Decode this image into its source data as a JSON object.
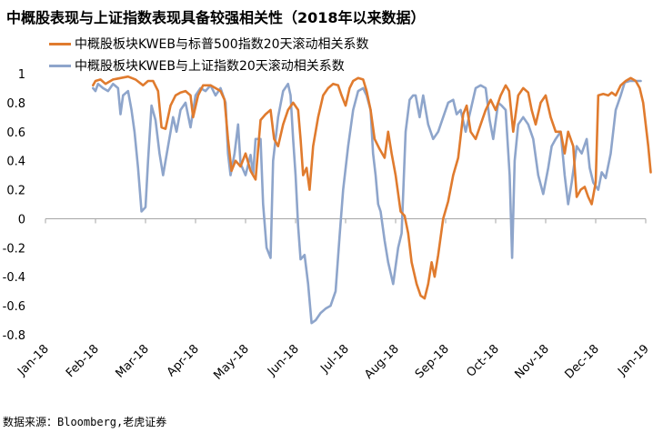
{
  "chart_data": {
    "type": "line",
    "title": "中概股表现与上证指数表现具备较强相关性（2018年以来数据）",
    "ylim": [
      -0.8,
      1
    ],
    "yticks": [
      1,
      0.8,
      0.6,
      0.4,
      0.2,
      0,
      -0.2,
      -0.4,
      -0.6,
      -0.8
    ],
    "ytick_labels": [
      "1",
      "0.8",
      "0.6",
      "0.4",
      "0.2",
      "0",
      "-0.2",
      "-0.4",
      "-0.6",
      "-0.8"
    ],
    "xticks": [
      "Jan-18",
      "Feb-18",
      "Mar-18",
      "Apr-18",
      "May-18",
      "Jun-18",
      "Jul-18",
      "Aug-18",
      "Sep-18",
      "Oct-18",
      "Nov-18",
      "Dec-18",
      "Jan-19"
    ],
    "x_unit": "months since Jan-18",
    "xlim": [
      0,
      12
    ],
    "grid": false,
    "legend_position": "top-left",
    "series": [
      {
        "name": "中概股板块KWEB与标普500指数20天滚动相关系数",
        "color": "#E07B2E",
        "points": [
          [
            0.95,
            0.92
          ],
          [
            1.0,
            0.95
          ],
          [
            1.1,
            0.96
          ],
          [
            1.2,
            0.93
          ],
          [
            1.35,
            0.96
          ],
          [
            1.5,
            0.97
          ],
          [
            1.65,
            0.98
          ],
          [
            1.8,
            0.96
          ],
          [
            1.95,
            0.92
          ],
          [
            2.05,
            0.95
          ],
          [
            2.15,
            0.95
          ],
          [
            2.25,
            0.88
          ],
          [
            2.32,
            0.63
          ],
          [
            2.4,
            0.62
          ],
          [
            2.5,
            0.78
          ],
          [
            2.6,
            0.85
          ],
          [
            2.7,
            0.87
          ],
          [
            2.8,
            0.88
          ],
          [
            2.9,
            0.85
          ],
          [
            2.95,
            0.7
          ],
          [
            3.05,
            0.85
          ],
          [
            3.15,
            0.92
          ],
          [
            3.3,
            0.92
          ],
          [
            3.4,
            0.9
          ],
          [
            3.5,
            0.88
          ],
          [
            3.58,
            0.82
          ],
          [
            3.65,
            0.55
          ],
          [
            3.72,
            0.33
          ],
          [
            3.8,
            0.4
          ],
          [
            3.9,
            0.36
          ],
          [
            4.0,
            0.45
          ],
          [
            4.1,
            0.33
          ],
          [
            4.2,
            0.27
          ],
          [
            4.3,
            0.68
          ],
          [
            4.4,
            0.72
          ],
          [
            4.5,
            0.75
          ],
          [
            4.57,
            0.55
          ],
          [
            4.65,
            0.5
          ],
          [
            4.75,
            0.65
          ],
          [
            4.85,
            0.75
          ],
          [
            4.95,
            0.8
          ],
          [
            5.05,
            0.75
          ],
          [
            5.1,
            0.55
          ],
          [
            5.15,
            0.3
          ],
          [
            5.22,
            0.35
          ],
          [
            5.28,
            0.2
          ],
          [
            5.35,
            0.5
          ],
          [
            5.45,
            0.7
          ],
          [
            5.55,
            0.85
          ],
          [
            5.65,
            0.9
          ],
          [
            5.75,
            0.93
          ],
          [
            5.85,
            0.92
          ],
          [
            5.92,
            0.85
          ],
          [
            6.0,
            0.78
          ],
          [
            6.08,
            0.9
          ],
          [
            6.15,
            0.95
          ],
          [
            6.25,
            0.97
          ],
          [
            6.35,
            0.96
          ],
          [
            6.42,
            0.88
          ],
          [
            6.5,
            0.75
          ],
          [
            6.58,
            0.55
          ],
          [
            6.68,
            0.48
          ],
          [
            6.78,
            0.42
          ],
          [
            6.85,
            0.6
          ],
          [
            6.92,
            0.45
          ],
          [
            7.0,
            0.3
          ],
          [
            7.1,
            0.05
          ],
          [
            7.18,
            0.02
          ],
          [
            7.25,
            -0.1
          ],
          [
            7.32,
            -0.3
          ],
          [
            7.42,
            -0.45
          ],
          [
            7.5,
            -0.53
          ],
          [
            7.58,
            -0.55
          ],
          [
            7.65,
            -0.45
          ],
          [
            7.72,
            -0.3
          ],
          [
            7.78,
            -0.4
          ],
          [
            7.85,
            -0.25
          ],
          [
            7.95,
            0.0
          ],
          [
            8.05,
            0.12
          ],
          [
            8.15,
            0.3
          ],
          [
            8.25,
            0.42
          ],
          [
            8.35,
            0.72
          ],
          [
            8.42,
            0.78
          ],
          [
            8.5,
            0.6
          ],
          [
            8.6,
            0.55
          ],
          [
            8.7,
            0.65
          ],
          [
            8.8,
            0.75
          ],
          [
            8.9,
            0.82
          ],
          [
            9.0,
            0.75
          ],
          [
            9.1,
            0.85
          ],
          [
            9.2,
            0.92
          ],
          [
            9.27,
            0.88
          ],
          [
            9.35,
            0.6
          ],
          [
            9.45,
            0.85
          ],
          [
            9.55,
            0.9
          ],
          [
            9.65,
            0.87
          ],
          [
            9.72,
            0.75
          ],
          [
            9.8,
            0.65
          ],
          [
            9.9,
            0.8
          ],
          [
            10.0,
            0.85
          ],
          [
            10.1,
            0.7
          ],
          [
            10.2,
            0.6
          ],
          [
            10.3,
            0.6
          ],
          [
            10.38,
            0.45
          ],
          [
            10.45,
            0.6
          ],
          [
            10.55,
            0.5
          ],
          [
            10.62,
            0.15
          ],
          [
            10.7,
            0.2
          ],
          [
            10.78,
            0.22
          ],
          [
            10.85,
            0.15
          ],
          [
            10.92,
            0.1
          ],
          [
            11.0,
            0.25
          ],
          [
            11.05,
            0.85
          ],
          [
            11.15,
            0.86
          ],
          [
            11.25,
            0.85
          ],
          [
            11.32,
            0.87
          ],
          [
            11.4,
            0.85
          ],
          [
            11.5,
            0.92
          ],
          [
            11.6,
            0.95
          ],
          [
            11.7,
            0.97
          ],
          [
            11.8,
            0.95
          ],
          [
            11.88,
            0.9
          ],
          [
            11.95,
            0.8
          ],
          [
            12.0,
            0.65
          ],
          [
            12.05,
            0.5
          ],
          [
            12.1,
            0.32
          ]
        ]
      },
      {
        "name": "中概股板块KWEB与上证指数20天滚动相关系数",
        "color": "#8EA5CB",
        "points": [
          [
            0.95,
            0.9
          ],
          [
            1.0,
            0.88
          ],
          [
            1.05,
            0.93
          ],
          [
            1.15,
            0.9
          ],
          [
            1.25,
            0.88
          ],
          [
            1.35,
            0.93
          ],
          [
            1.45,
            0.9
          ],
          [
            1.5,
            0.72
          ],
          [
            1.55,
            0.85
          ],
          [
            1.65,
            0.88
          ],
          [
            1.72,
            0.75
          ],
          [
            1.78,
            0.6
          ],
          [
            1.85,
            0.35
          ],
          [
            1.92,
            0.05
          ],
          [
            2.0,
            0.08
          ],
          [
            2.05,
            0.4
          ],
          [
            2.12,
            0.78
          ],
          [
            2.2,
            0.68
          ],
          [
            2.28,
            0.45
          ],
          [
            2.35,
            0.3
          ],
          [
            2.45,
            0.5
          ],
          [
            2.55,
            0.7
          ],
          [
            2.62,
            0.6
          ],
          [
            2.7,
            0.75
          ],
          [
            2.8,
            0.8
          ],
          [
            2.9,
            0.63
          ],
          [
            3.0,
            0.85
          ],
          [
            3.1,
            0.9
          ],
          [
            3.2,
            0.88
          ],
          [
            3.3,
            0.92
          ],
          [
            3.4,
            0.85
          ],
          [
            3.5,
            0.9
          ],
          [
            3.6,
            0.8
          ],
          [
            3.65,
            0.45
          ],
          [
            3.7,
            0.3
          ],
          [
            3.78,
            0.45
          ],
          [
            3.85,
            0.65
          ],
          [
            3.9,
            0.38
          ],
          [
            4.0,
            0.3
          ],
          [
            4.1,
            0.44
          ],
          [
            4.15,
            0.3
          ],
          [
            4.2,
            0.55
          ],
          [
            4.3,
            0.55
          ],
          [
            4.35,
            0.1
          ],
          [
            4.42,
            -0.2
          ],
          [
            4.5,
            -0.27
          ],
          [
            4.55,
            0.4
          ],
          [
            4.65,
            0.7
          ],
          [
            4.75,
            0.88
          ],
          [
            4.85,
            0.93
          ],
          [
            4.9,
            0.85
          ],
          [
            4.95,
            0.55
          ],
          [
            5.0,
            0.3
          ],
          [
            5.05,
            -0.05
          ],
          [
            5.1,
            -0.28
          ],
          [
            5.18,
            -0.25
          ],
          [
            5.25,
            -0.45
          ],
          [
            5.32,
            -0.72
          ],
          [
            5.4,
            -0.7
          ],
          [
            5.5,
            -0.65
          ],
          [
            5.6,
            -0.62
          ],
          [
            5.7,
            -0.6
          ],
          [
            5.8,
            -0.5
          ],
          [
            5.88,
            -0.12
          ],
          [
            5.95,
            0.2
          ],
          [
            6.05,
            0.5
          ],
          [
            6.15,
            0.75
          ],
          [
            6.25,
            0.88
          ],
          [
            6.35,
            0.9
          ],
          [
            6.42,
            0.85
          ],
          [
            6.5,
            0.75
          ],
          [
            6.55,
            0.45
          ],
          [
            6.6,
            0.3
          ],
          [
            6.65,
            0.1
          ],
          [
            6.7,
            0.05
          ],
          [
            6.78,
            -0.15
          ],
          [
            6.85,
            -0.3
          ],
          [
            6.95,
            -0.45
          ],
          [
            7.05,
            -0.2
          ],
          [
            7.12,
            -0.1
          ],
          [
            7.2,
            0.6
          ],
          [
            7.28,
            0.82
          ],
          [
            7.35,
            0.85
          ],
          [
            7.4,
            0.85
          ],
          [
            7.48,
            0.7
          ],
          [
            7.55,
            0.85
          ],
          [
            7.65,
            0.65
          ],
          [
            7.75,
            0.55
          ],
          [
            7.85,
            0.6
          ],
          [
            7.95,
            0.7
          ],
          [
            8.05,
            0.8
          ],
          [
            8.15,
            0.82
          ],
          [
            8.22,
            0.72
          ],
          [
            8.3,
            0.75
          ],
          [
            8.4,
            0.6
          ],
          [
            8.5,
            0.75
          ],
          [
            8.6,
            0.9
          ],
          [
            8.7,
            0.92
          ],
          [
            8.8,
            0.9
          ],
          [
            8.88,
            0.68
          ],
          [
            8.95,
            0.55
          ],
          [
            9.05,
            0.8
          ],
          [
            9.12,
            0.78
          ],
          [
            9.2,
            0.75
          ],
          [
            9.28,
            0.3
          ],
          [
            9.33,
            -0.27
          ],
          [
            9.38,
            0.4
          ],
          [
            9.45,
            0.65
          ],
          [
            9.55,
            0.7
          ],
          [
            9.65,
            0.65
          ],
          [
            9.75,
            0.55
          ],
          [
            9.85,
            0.3
          ],
          [
            9.95,
            0.17
          ],
          [
            10.05,
            0.35
          ],
          [
            10.12,
            0.5
          ],
          [
            10.2,
            0.55
          ],
          [
            10.3,
            0.6
          ],
          [
            10.38,
            0.3
          ],
          [
            10.45,
            0.1
          ],
          [
            10.52,
            0.25
          ],
          [
            10.62,
            0.5
          ],
          [
            10.72,
            0.45
          ],
          [
            10.82,
            0.55
          ],
          [
            10.88,
            0.35
          ],
          [
            10.95,
            0.25
          ],
          [
            11.05,
            0.2
          ],
          [
            11.12,
            0.32
          ],
          [
            11.2,
            0.28
          ],
          [
            11.3,
            0.45
          ],
          [
            11.4,
            0.75
          ],
          [
            11.5,
            0.85
          ],
          [
            11.58,
            0.94
          ],
          [
            11.68,
            0.95
          ],
          [
            11.8,
            0.95
          ],
          [
            11.9,
            0.95
          ]
        ]
      }
    ]
  },
  "footer": {
    "source": "数据来源：Bloomberg,老虎证券"
  }
}
